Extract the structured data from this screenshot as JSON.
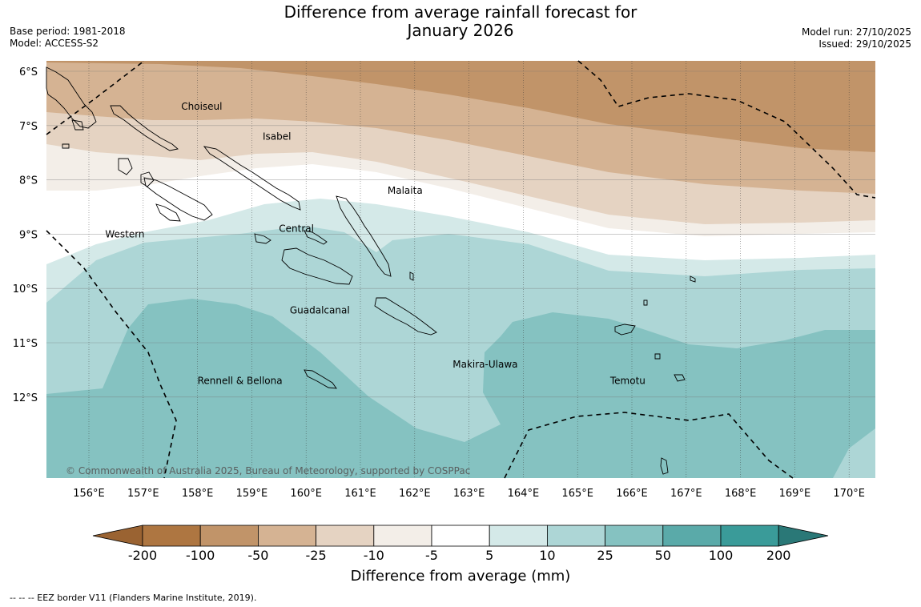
{
  "title": {
    "line1": "Difference from average rainfall forecast for",
    "line2": "January 2026"
  },
  "meta_left": {
    "base_period": "Base period: 1981-2018",
    "model": "Model: ACCESS-S2"
  },
  "meta_right": {
    "model_run": "Model run: 27/10/2025",
    "issued": "Issued: 29/10/2025"
  },
  "map": {
    "lon_ticks": [
      "156°E",
      "157°E",
      "158°E",
      "159°E",
      "160°E",
      "161°E",
      "162°E",
      "163°E",
      "164°E",
      "165°E",
      "166°E",
      "167°E",
      "168°E",
      "169°E",
      "170°E"
    ],
    "lat_ticks": [
      "6°S",
      "7°S",
      "8°S",
      "9°S",
      "10°S",
      "11°S",
      "12°S"
    ],
    "provinces": [
      {
        "name": "Choiseul",
        "lon": 157.7,
        "lat": -6.65
      },
      {
        "name": "Isabel",
        "lon": 159.2,
        "lat": -7.2
      },
      {
        "name": "Malaita",
        "lon": 161.5,
        "lat": -8.2
      },
      {
        "name": "Central",
        "lon": 159.5,
        "lat": -8.9
      },
      {
        "name": "Western",
        "lon": 156.3,
        "lat": -9.0
      },
      {
        "name": "Guadalcanal",
        "lon": 159.7,
        "lat": -10.4
      },
      {
        "name": "Makira-Ulawa",
        "lon": 162.7,
        "lat": -11.4
      },
      {
        "name": "Temotu",
        "lon": 165.6,
        "lat": -11.7
      },
      {
        "name": "Rennell & Bellona",
        "lon": 158.0,
        "lat": -11.7
      }
    ],
    "copyright": "© Commonwealth of Australia 2025, Bureau of Meteorology, supported by COSPPac"
  },
  "colorbar": {
    "title": "Difference from average (mm)",
    "labels": [
      "-200",
      "-100",
      "-50",
      "-25",
      "-10",
      "-5",
      "5",
      "10",
      "25",
      "50",
      "100",
      "200"
    ],
    "colors": [
      "#9a6332",
      "#ae7641",
      "#c19469",
      "#d5b393",
      "#e5d3c2",
      "#f3eee8",
      "#ffffff",
      "#d4e9e8",
      "#add6d6",
      "#85c2c1",
      "#5aaaa9",
      "#3a9b99",
      "#2a7877"
    ]
  },
  "footer": "--  --  -- EEZ border V11 (Flanders Marine Institute, 2019)."
}
